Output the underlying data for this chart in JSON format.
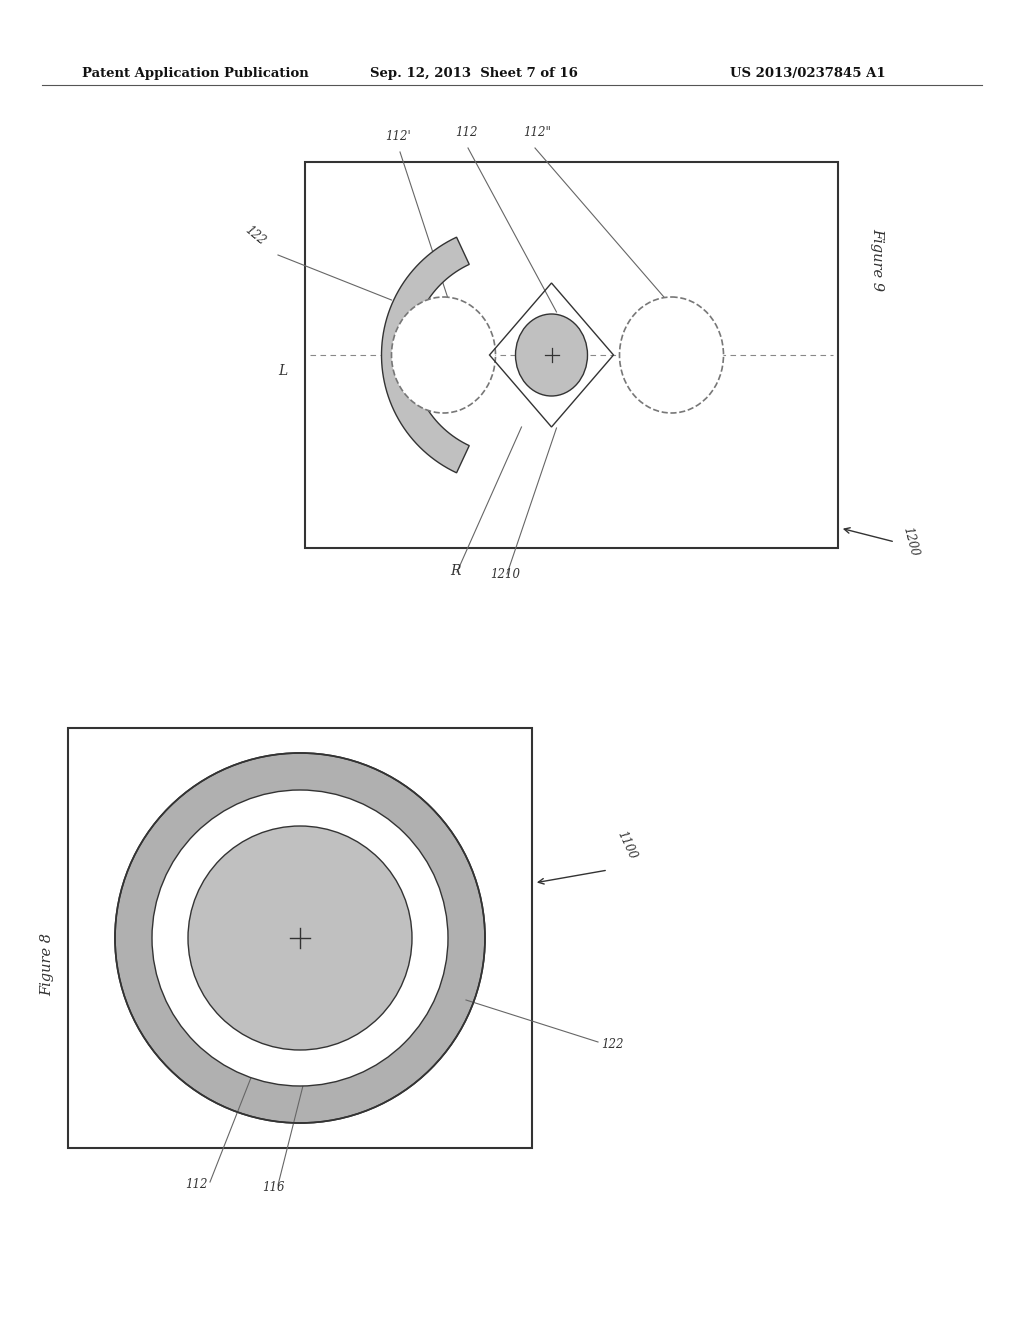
{
  "bg_color": "#ffffff",
  "header_left": "Patent Application Publication",
  "header_mid": "Sep. 12, 2013  Sheet 7 of 16",
  "header_right": "US 2013/0237845 A1",
  "gray_fill": "#c0c0c0",
  "gray_ring": "#b0b0b0",
  "dashed_color": "#777777",
  "line_color": "#333333"
}
